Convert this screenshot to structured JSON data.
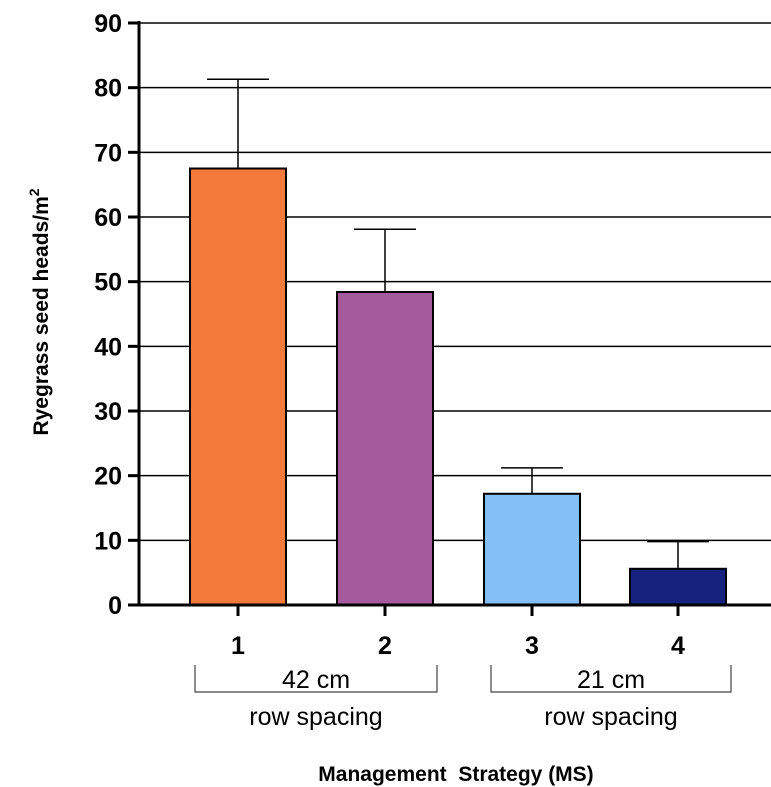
{
  "chart_data": {
    "type": "bar",
    "ylabel": "Ryegrass seed heads/m",
    "ylabel_superscript": "2",
    "xlabel": "Management  Strategy (MS)",
    "ylim": [
      0,
      90
    ],
    "yticks": [
      "0",
      "10",
      "20",
      "30",
      "40",
      "50",
      "60",
      "70",
      "80",
      "90"
    ],
    "grid": "horizontal",
    "categories": [
      "1",
      "2",
      "3",
      "4"
    ],
    "values": [
      67.5,
      48.4,
      17.2,
      5.6
    ],
    "error_upper": [
      81.3,
      58.1,
      21.2,
      9.8
    ],
    "colors": [
      "#f47a3c",
      "#a65a9e",
      "#85bff7",
      "#15227e"
    ],
    "groups": [
      {
        "label": "42 cm",
        "sublabel": "row spacing",
        "categories": [
          "1",
          "2"
        ]
      },
      {
        "label": "21 cm",
        "sublabel": "row spacing",
        "categories": [
          "3",
          "4"
        ]
      }
    ]
  }
}
